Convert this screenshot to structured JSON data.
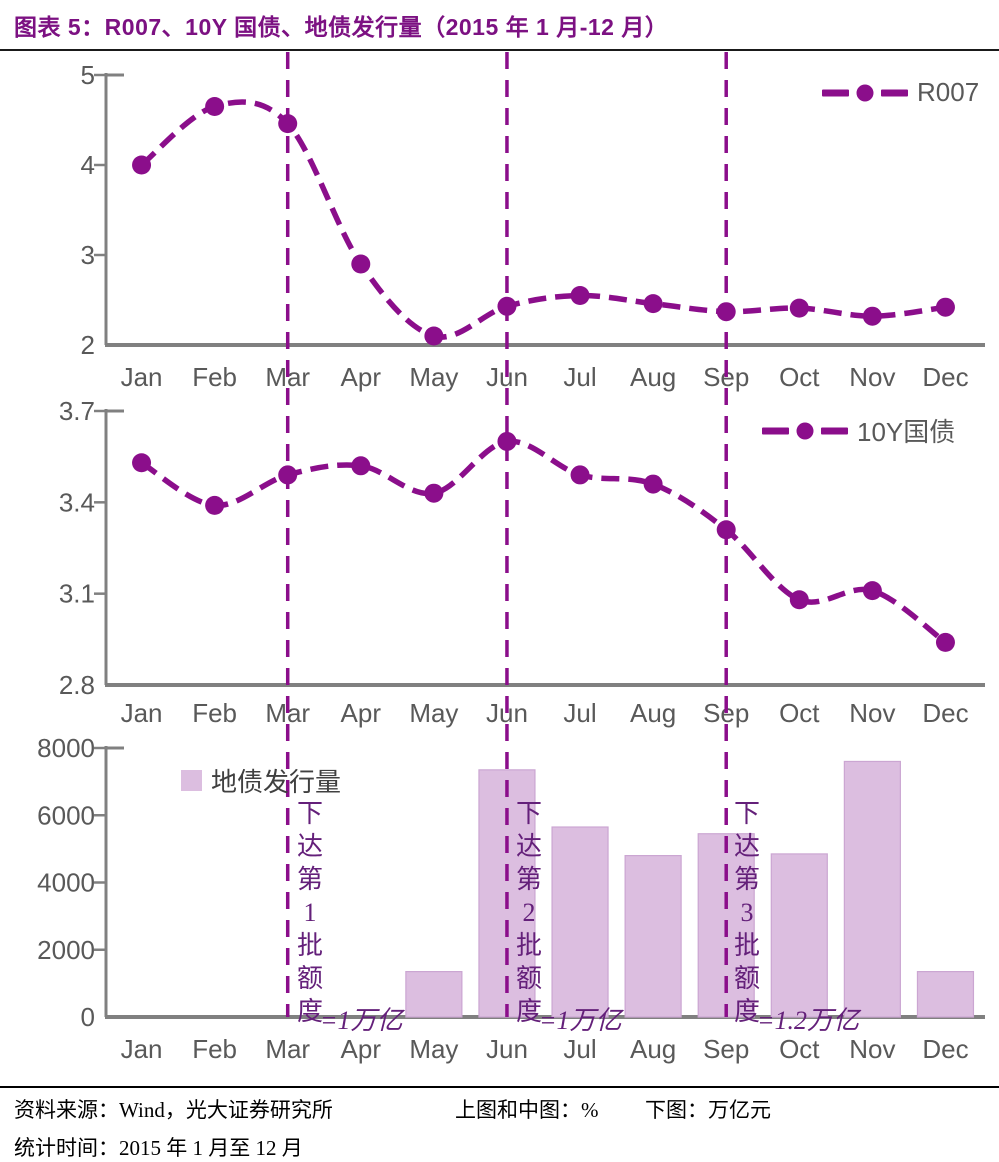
{
  "title": "图表 5：R007、10Y 国债、地债发行量（2015 年 1 月-12 月）",
  "colors": {
    "series_purple": "#8B0E8B",
    "bar_fill": "#DCBEE0",
    "bar_edge": "#CBA6D2",
    "axis_gray": "#808080",
    "tick_text_gray": "#595959",
    "annotation_purple": "#64207A",
    "title_purple": "#7C1182"
  },
  "chart_data": [
    {
      "type": "line",
      "legend": "R007",
      "legend_position": "top-right",
      "categories": [
        "Jan",
        "Feb",
        "Mar",
        "Apr",
        "May",
        "Jun",
        "Jul",
        "Aug",
        "Sep",
        "Oct",
        "Nov",
        "Dec"
      ],
      "values": [
        4.0,
        4.65,
        4.46,
        2.9,
        2.1,
        2.43,
        2.55,
        2.46,
        2.37,
        2.41,
        2.32,
        2.42
      ],
      "ylim": [
        2,
        5
      ],
      "yticks": [
        "2",
        "3",
        "4",
        "5"
      ]
    },
    {
      "type": "line",
      "legend": "10Y国债",
      "legend_position": "top-right",
      "categories": [
        "Jan",
        "Feb",
        "Mar",
        "Apr",
        "May",
        "Jun",
        "Jul",
        "Aug",
        "Sep",
        "Oct",
        "Nov",
        "Dec"
      ],
      "values": [
        3.53,
        3.39,
        3.49,
        3.52,
        3.43,
        3.6,
        3.49,
        3.46,
        3.31,
        3.08,
        3.11,
        2.94
      ],
      "ylim": [
        2.8,
        3.7
      ],
      "yticks": [
        "2.8",
        "3.1",
        "3.4",
        "3.7"
      ]
    },
    {
      "type": "bar",
      "legend": "地债发行量",
      "legend_position": "top-left",
      "categories": [
        "Jan",
        "Feb",
        "Mar",
        "Apr",
        "May",
        "Jun",
        "Jul",
        "Aug",
        "Sep",
        "Oct",
        "Nov",
        "Dec"
      ],
      "values": [
        0,
        0,
        0,
        0,
        1350,
        7350,
        5650,
        4800,
        5450,
        4850,
        7600,
        1350
      ],
      "ylim": [
        0,
        8000
      ],
      "yticks": [
        "0",
        "2000",
        "4000",
        "6000",
        "8000"
      ]
    }
  ],
  "dashed_vlines": [
    "Mar",
    "Jun",
    "Sep"
  ],
  "annotations": [
    {
      "month": "Mar",
      "vertical_text": "下达第1批额度",
      "tail": "=1万亿"
    },
    {
      "month": "Jun",
      "vertical_text": "下达第2批额度",
      "tail": "=1万亿"
    },
    {
      "month": "Sep",
      "vertical_text": "下达第3批额度",
      "tail": "=1.2万亿"
    }
  ],
  "footer": {
    "source": "资料来源：Wind，光大证券研究所",
    "units_top_mid": "上图和中图：%",
    "units_bottom": "下图：万亿元",
    "period": "统计时间：2015 年 1 月至 12 月"
  }
}
